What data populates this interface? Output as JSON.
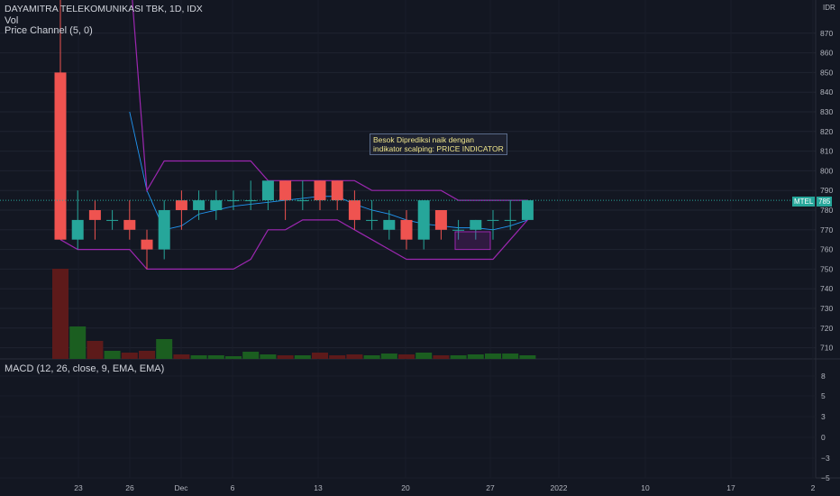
{
  "header": {
    "title": "DAYAMITRA TELEKOMUNIKASI TBK, 1D, IDX",
    "vol_label": "Vol",
    "price_channel_label": "Price Channel (5, 0)",
    "macd_label": "MACD (12, 26, close, 9, EMA, EMA)",
    "currency": "IDR"
  },
  "annotation": {
    "line1": "Besok Diprediksi naik dengan",
    "line2": "indikator scalping: PRICE INDICATOR"
  },
  "price_tags": {
    "symbol": "MTEL",
    "last": "785"
  },
  "colors": {
    "background": "#131722",
    "up": "#26a69a",
    "down": "#ef5350",
    "channel": "#9c27b0",
    "ma": "#2196f3",
    "vol_up": "#1b5e20",
    "vol_down": "#5d1a1a"
  },
  "chart_data": [
    {
      "type": "candlestick",
      "title": "DAYAMITRA TELEKOMUNIKASI TBK, 1D, IDX",
      "y_ticks": [
        710,
        720,
        730,
        740,
        750,
        760,
        770,
        780,
        790,
        800,
        810,
        820,
        830,
        840,
        850,
        860,
        870
      ],
      "x_tick_labels": [
        "23",
        "26",
        "Dec",
        "6",
        "13",
        "20",
        "27",
        "2022",
        "10",
        "17",
        "2"
      ],
      "last_price": 785,
      "candles": [
        {
          "o": 850,
          "h": 905,
          "l": 765,
          "c": 765
        },
        {
          "o": 765,
          "h": 790,
          "l": 760,
          "c": 775
        },
        {
          "o": 780,
          "h": 785,
          "l": 765,
          "c": 775
        },
        {
          "o": 775,
          "h": 780,
          "l": 770,
          "c": 775
        },
        {
          "o": 775,
          "h": 785,
          "l": 765,
          "c": 770
        },
        {
          "o": 765,
          "h": 770,
          "l": 750,
          "c": 760
        },
        {
          "o": 760,
          "h": 785,
          "l": 755,
          "c": 780
        },
        {
          "o": 785,
          "h": 790,
          "l": 770,
          "c": 780
        },
        {
          "o": 780,
          "h": 790,
          "l": 775,
          "c": 785
        },
        {
          "o": 780,
          "h": 790,
          "l": 775,
          "c": 785
        },
        {
          "o": 785,
          "h": 790,
          "l": 780,
          "c": 785
        },
        {
          "o": 785,
          "h": 795,
          "l": 780,
          "c": 785
        },
        {
          "o": 785,
          "h": 795,
          "l": 780,
          "c": 795
        },
        {
          "o": 795,
          "h": 795,
          "l": 775,
          "c": 785
        },
        {
          "o": 785,
          "h": 795,
          "l": 780,
          "c": 785
        },
        {
          "o": 795,
          "h": 795,
          "l": 780,
          "c": 785
        },
        {
          "o": 795,
          "h": 795,
          "l": 780,
          "c": 785
        },
        {
          "o": 785,
          "h": 790,
          "l": 770,
          "c": 775
        },
        {
          "o": 775,
          "h": 785,
          "l": 770,
          "c": 775
        },
        {
          "o": 770,
          "h": 780,
          "l": 765,
          "c": 775
        },
        {
          "o": 775,
          "h": 780,
          "l": 760,
          "c": 765
        },
        {
          "o": 765,
          "h": 785,
          "l": 760,
          "c": 785
        },
        {
          "o": 780,
          "h": 780,
          "l": 765,
          "c": 770
        },
        {
          "o": 770,
          "h": 775,
          "l": 765,
          "c": 770
        },
        {
          "o": 770,
          "h": 775,
          "l": 765,
          "c": 775
        },
        {
          "o": 775,
          "h": 780,
          "l": 765,
          "c": 775
        },
        {
          "o": 775,
          "h": 785,
          "l": 770,
          "c": 775
        },
        {
          "o": 775,
          "h": 785,
          "l": 775,
          "c": 785
        }
      ],
      "volume_levels": [
        1.0,
        0.36,
        0.2,
        0.09,
        0.07,
        0.09,
        0.22,
        0.05,
        0.04,
        0.04,
        0.03,
        0.08,
        0.05,
        0.04,
        0.04,
        0.07,
        0.04,
        0.05,
        0.04,
        0.06,
        0.05,
        0.07,
        0.04,
        0.04,
        0.05,
        0.06,
        0.06,
        0.04
      ],
      "channel_upper": [
        905,
        905,
        905,
        905,
        905,
        790,
        805,
        805,
        805,
        805,
        805,
        805,
        795,
        795,
        795,
        795,
        795,
        795,
        790,
        790,
        790,
        790,
        790,
        785,
        785,
        785,
        785,
        785
      ],
      "channel_lower": [
        765,
        760,
        760,
        760,
        760,
        750,
        750,
        750,
        750,
        750,
        750,
        755,
        770,
        770,
        775,
        775,
        775,
        770,
        765,
        760,
        755,
        755,
        755,
        755,
        755,
        755,
        765,
        775
      ],
      "ma_line": [
        null,
        null,
        null,
        null,
        830,
        790,
        770,
        772,
        778,
        780,
        782,
        783,
        784,
        785,
        786,
        787,
        787,
        783,
        780,
        778,
        775,
        773,
        772,
        771,
        771,
        770,
        772,
        775
      ]
    }
  ]
}
